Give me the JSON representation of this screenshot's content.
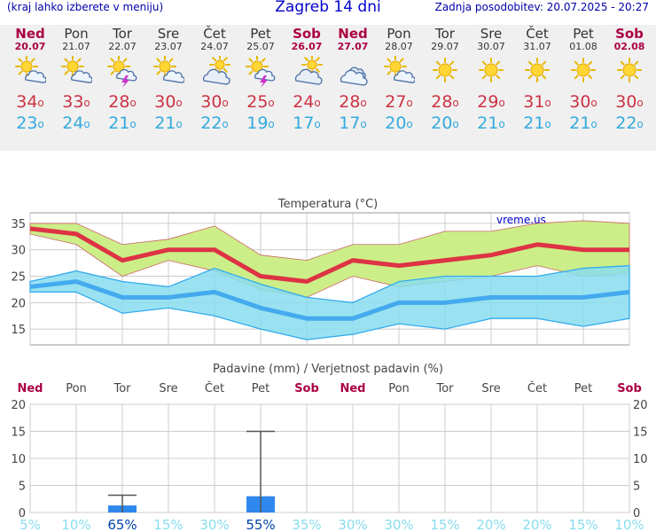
{
  "header": {
    "left_note": "(kraj lahko izberete v meniju)",
    "title": "Zagreb 14 dni",
    "updated": "Zadnja posodobitev: 20.07.2025 - 20:27"
  },
  "days": [
    {
      "name": "Ned",
      "date": "20.07",
      "holiday": true,
      "icon": "sun-cloud-icon",
      "tmax": "34",
      "tmin": "23"
    },
    {
      "name": "Pon",
      "date": "21.07",
      "holiday": false,
      "icon": "sun-cloud-icon",
      "tmax": "33",
      "tmin": "24"
    },
    {
      "name": "Tor",
      "date": "22.07",
      "holiday": false,
      "icon": "sun-storm-icon",
      "tmax": "28",
      "tmin": "21"
    },
    {
      "name": "Sre",
      "date": "23.07",
      "holiday": false,
      "icon": "sun-cloud-icon",
      "tmax": "30",
      "tmin": "21"
    },
    {
      "name": "Čet",
      "date": "24.07",
      "holiday": false,
      "icon": "cloud-sun-icon",
      "tmax": "30",
      "tmin": "22"
    },
    {
      "name": "Pet",
      "date": "25.07",
      "holiday": false,
      "icon": "sun-storm-icon",
      "tmax": "25",
      "tmin": "19"
    },
    {
      "name": "Sob",
      "date": "26.07",
      "holiday": true,
      "icon": "cloud-sun-icon",
      "tmax": "24",
      "tmin": "17"
    },
    {
      "name": "Ned",
      "date": "27.07",
      "holiday": true,
      "icon": "cloud-icon",
      "tmax": "28",
      "tmin": "17"
    },
    {
      "name": "Pon",
      "date": "28.07",
      "holiday": false,
      "icon": "sun-cloud-icon",
      "tmax": "27",
      "tmin": "20"
    },
    {
      "name": "Tor",
      "date": "29.07",
      "holiday": false,
      "icon": "sun-icon",
      "tmax": "28",
      "tmin": "20"
    },
    {
      "name": "Sre",
      "date": "30.07",
      "holiday": false,
      "icon": "sun-icon",
      "tmax": "29",
      "tmin": "21"
    },
    {
      "name": "Čet",
      "date": "31.07",
      "holiday": false,
      "icon": "sun-icon",
      "tmax": "31",
      "tmin": "21"
    },
    {
      "name": "Pet",
      "date": "01.08",
      "holiday": false,
      "icon": "sun-icon",
      "tmax": "30",
      "tmin": "21"
    },
    {
      "name": "Sob",
      "date": "02.08",
      "holiday": true,
      "icon": "sun-icon",
      "tmax": "30",
      "tmin": "22"
    }
  ],
  "colors": {
    "holiday": "#aa0044",
    "tmax": "#cc3344",
    "tmin": "#33aadd",
    "max_band": "#ccee88",
    "min_band": "#88ddee",
    "overlap": "#88dd88",
    "precip_bar": "#2f88ee",
    "prob_text": "#88ddee",
    "prob_text_high": "#0044aa"
  },
  "chart_data": [
    {
      "type": "line",
      "title": "Temperatura (°C)",
      "watermark": "vreme.us",
      "categories": [
        "20.07",
        "21.07",
        "22.07",
        "23.07",
        "24.07",
        "25.07",
        "26.07",
        "27.07",
        "28.07",
        "29.07",
        "30.07",
        "31.07",
        "01.08",
        "02.08"
      ],
      "ylim": [
        12,
        37
      ],
      "yticks": [
        15,
        20,
        25,
        30,
        35
      ],
      "grid": true,
      "series": [
        {
          "role": "max",
          "values": [
            34,
            33,
            28,
            30,
            30,
            25,
            24,
            28,
            27,
            28,
            29,
            31,
            30,
            30
          ]
        },
        {
          "role": "min",
          "values": [
            23,
            24,
            21,
            21,
            22,
            19,
            17,
            17,
            20,
            20,
            21,
            21,
            21,
            22
          ]
        }
      ],
      "bands": [
        {
          "role": "max-range",
          "upper": [
            35,
            35,
            31,
            32,
            34.5,
            29,
            28,
            31,
            31,
            33.5,
            33.5,
            35,
            35.5,
            35
          ],
          "lower": [
            33,
            31,
            25,
            28,
            26,
            22.5,
            21,
            25,
            23,
            24,
            25,
            27,
            25,
            25.5
          ]
        },
        {
          "role": "min-range",
          "upper": [
            24,
            26,
            24,
            23,
            26.5,
            23.5,
            21,
            20,
            24,
            25,
            25,
            25,
            26.5,
            27
          ],
          "lower": [
            22,
            22,
            18,
            19,
            17.5,
            15,
            13,
            14,
            16,
            15,
            17,
            17,
            15.5,
            17
          ]
        }
      ]
    },
    {
      "type": "bar",
      "title": "Padavine (mm) / Verjetnost padavin (%)",
      "categories": [
        "Ned",
        "Pon",
        "Tor",
        "Sre",
        "Čet",
        "Pet",
        "Sob",
        "Ned",
        "Pon",
        "Tor",
        "Sre",
        "Čet",
        "Pet",
        "Sob"
      ],
      "ylim": [
        0,
        20
      ],
      "yticks": [
        0,
        5,
        10,
        15,
        20
      ],
      "grid": true,
      "values": [
        0,
        0,
        1.3,
        0,
        0,
        3,
        0,
        0,
        0,
        0,
        0,
        0,
        0,
        0
      ],
      "error_high": [
        0,
        0,
        3.2,
        0,
        0,
        15,
        0,
        0,
        0,
        0,
        0,
        0,
        0,
        0
      ],
      "probability": [
        "5%",
        "10%",
        "65%",
        "15%",
        "30%",
        "55%",
        "35%",
        "30%",
        "30%",
        "15%",
        "20%",
        "20%",
        "15%",
        "10%"
      ]
    }
  ]
}
